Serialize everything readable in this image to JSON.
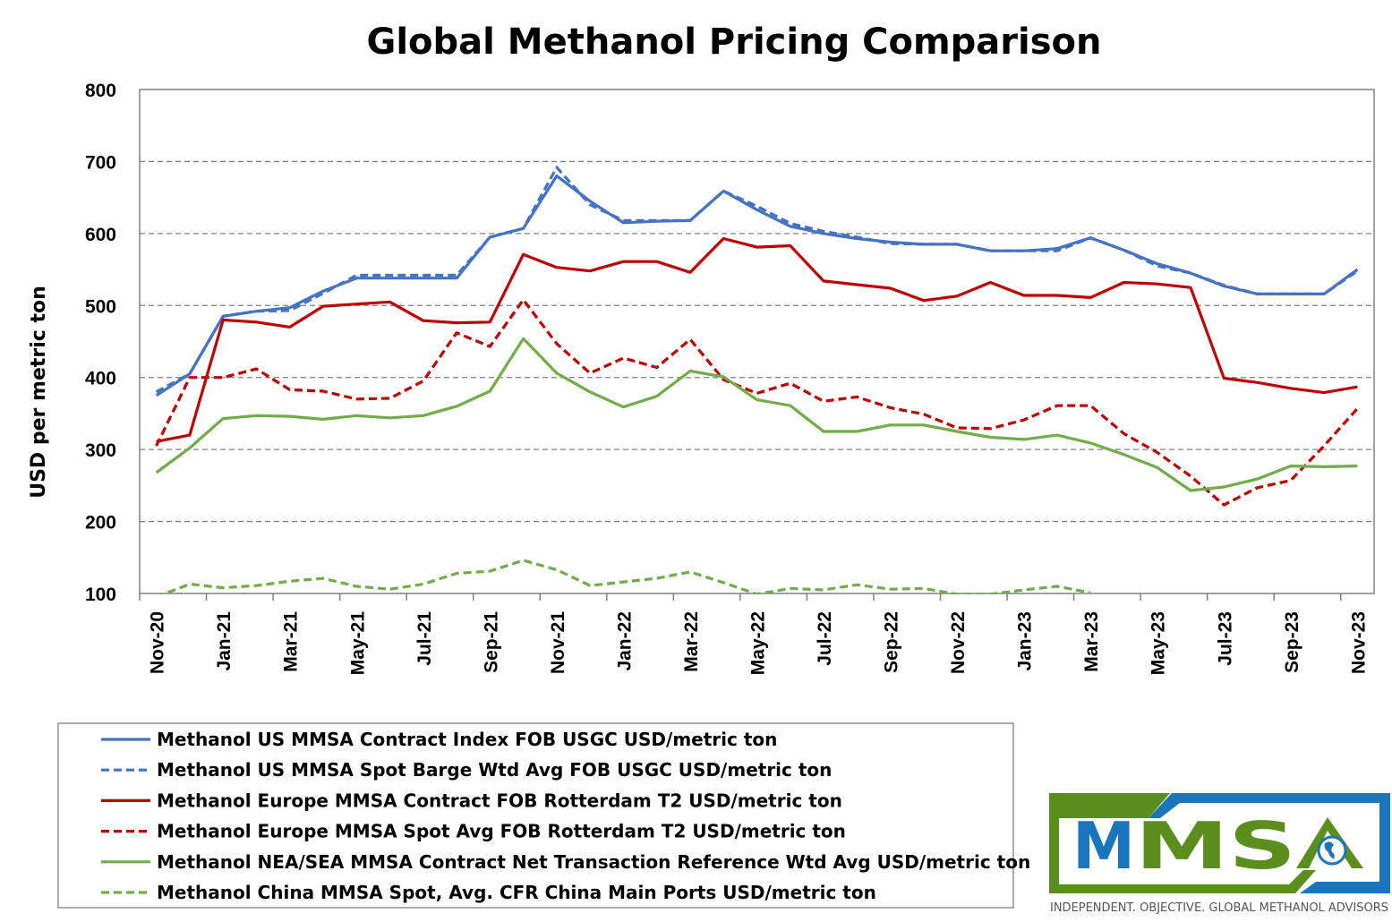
{
  "chart_data": {
    "type": "line",
    "title": "Global Methanol Pricing Comparison",
    "ylabel": "USD per metric ton",
    "xlabel": "",
    "ylim": [
      100,
      800
    ],
    "yticks": [
      100,
      200,
      300,
      400,
      500,
      600,
      700,
      800
    ],
    "grid": "horizontal dashed",
    "legend_position": "bottom-left",
    "x": [
      "Nov-20",
      "Dec-20",
      "Jan-21",
      "Feb-21",
      "Mar-21",
      "Apr-21",
      "May-21",
      "Jun-21",
      "Jul-21",
      "Aug-21",
      "Sep-21",
      "Oct-21",
      "Nov-21",
      "Dec-21",
      "Jan-22",
      "Feb-22",
      "Mar-22",
      "Apr-22",
      "May-22",
      "Jun-22",
      "Jul-22",
      "Aug-22",
      "Sep-22",
      "Oct-22",
      "Nov-22",
      "Dec-22",
      "Jan-23",
      "Feb-23",
      "Mar-23",
      "Apr-23",
      "May-23",
      "Jun-23",
      "Jul-23",
      "Aug-23",
      "Sep-23",
      "Oct-23",
      "Nov-23"
    ],
    "xtick_labels": [
      "Nov-20",
      "Jan-21",
      "Mar-21",
      "May-21",
      "Jul-21",
      "Sep-21",
      "Nov-21",
      "Jan-22",
      "Mar-22",
      "May-22",
      "Jul-22",
      "Sep-22",
      "Nov-22",
      "Jan-23",
      "Mar-23",
      "May-23",
      "Jul-23",
      "Sep-23",
      "Nov-23"
    ],
    "series": [
      {
        "name": "Methanol US MMSA Contract Index FOB USGC USD/metric ton",
        "color": "#4472C4",
        "dash": false,
        "values": [
          375,
          405,
          485,
          492,
          497,
          520,
          538,
          538,
          538,
          538,
          595,
          607,
          680,
          645,
          615,
          617,
          618,
          659,
          633,
          610,
          600,
          593,
          588,
          585,
          585,
          576,
          576,
          579,
          594,
          577,
          558,
          545,
          527,
          516,
          516,
          516,
          550
        ]
      },
      {
        "name": "Methanol US MMSA Spot Barge Wtd Avg FOB USGC USD/metric ton",
        "color": "#4472C4",
        "dash": true,
        "values": [
          380,
          405,
          485,
          492,
          493,
          517,
          542,
          542,
          542,
          542,
          595,
          607,
          692,
          640,
          618,
          618,
          618,
          659,
          638,
          614,
          603,
          595,
          586,
          585,
          585,
          576,
          576,
          576,
          594,
          577,
          555,
          545,
          528,
          516,
          516,
          516,
          548
        ]
      },
      {
        "name": "Methanol Europe MMSA Contract FOB Rotterdam T2 USD/metric ton",
        "color": "#C00000",
        "dash": false,
        "values": [
          311,
          320,
          480,
          477,
          470,
          499,
          502,
          505,
          479,
          476,
          477,
          571,
          553,
          548,
          561,
          561,
          546,
          593,
          581,
          583,
          534,
          529,
          524,
          507,
          513,
          532,
          514,
          514,
          511,
          532,
          530,
          525,
          399,
          393,
          385,
          379,
          387
        ]
      },
      {
        "name": "Methanol Europe MMSA Spot Avg FOB Rotterdam T2 USD/metric ton",
        "color": "#C00000",
        "dash": true,
        "values": [
          305,
          400,
          400,
          412,
          383,
          381,
          370,
          371,
          395,
          462,
          443,
          508,
          447,
          406,
          427,
          414,
          453,
          397,
          378,
          392,
          367,
          373,
          358,
          349,
          330,
          329,
          341,
          361,
          361,
          322,
          296,
          263,
          223,
          247,
          257,
          305,
          357
        ]
      },
      {
        "name": "Methanol NEA/SEA MMSA Contract Net Transaction Reference Wtd Avg USD/metric ton",
        "color": "#70AD47",
        "dash": false,
        "values": [
          268,
          302,
          343,
          347,
          346,
          342,
          347,
          344,
          347,
          360,
          381,
          454,
          406,
          380,
          359,
          374,
          409,
          401,
          369,
          361,
          325,
          325,
          334,
          334,
          325,
          317,
          314,
          320,
          309,
          293,
          275,
          243,
          248,
          259,
          277,
          276,
          277
        ]
      },
      {
        "name": "Methanol China MMSA Spot, Avg. CFR China Main Ports USD/metric ton",
        "color": "#70AD47",
        "dash": true,
        "values": [
          95,
          113,
          108,
          111,
          117,
          121,
          110,
          106,
          113,
          128,
          131,
          146,
          133,
          111,
          116,
          121,
          130,
          115,
          99,
          107,
          105,
          112,
          106,
          107,
          99,
          99,
          105,
          110,
          101,
          null,
          null,
          null,
          null,
          null,
          null,
          null,
          100
        ]
      }
    ]
  },
  "logo": {
    "text": "MMSA",
    "tagline": "INDEPENDENT. OBJECTIVE. GLOBAL METHANOL ADVISORS",
    "colors": {
      "green": "#5A8F1E",
      "blue": "#1B75BC"
    }
  }
}
